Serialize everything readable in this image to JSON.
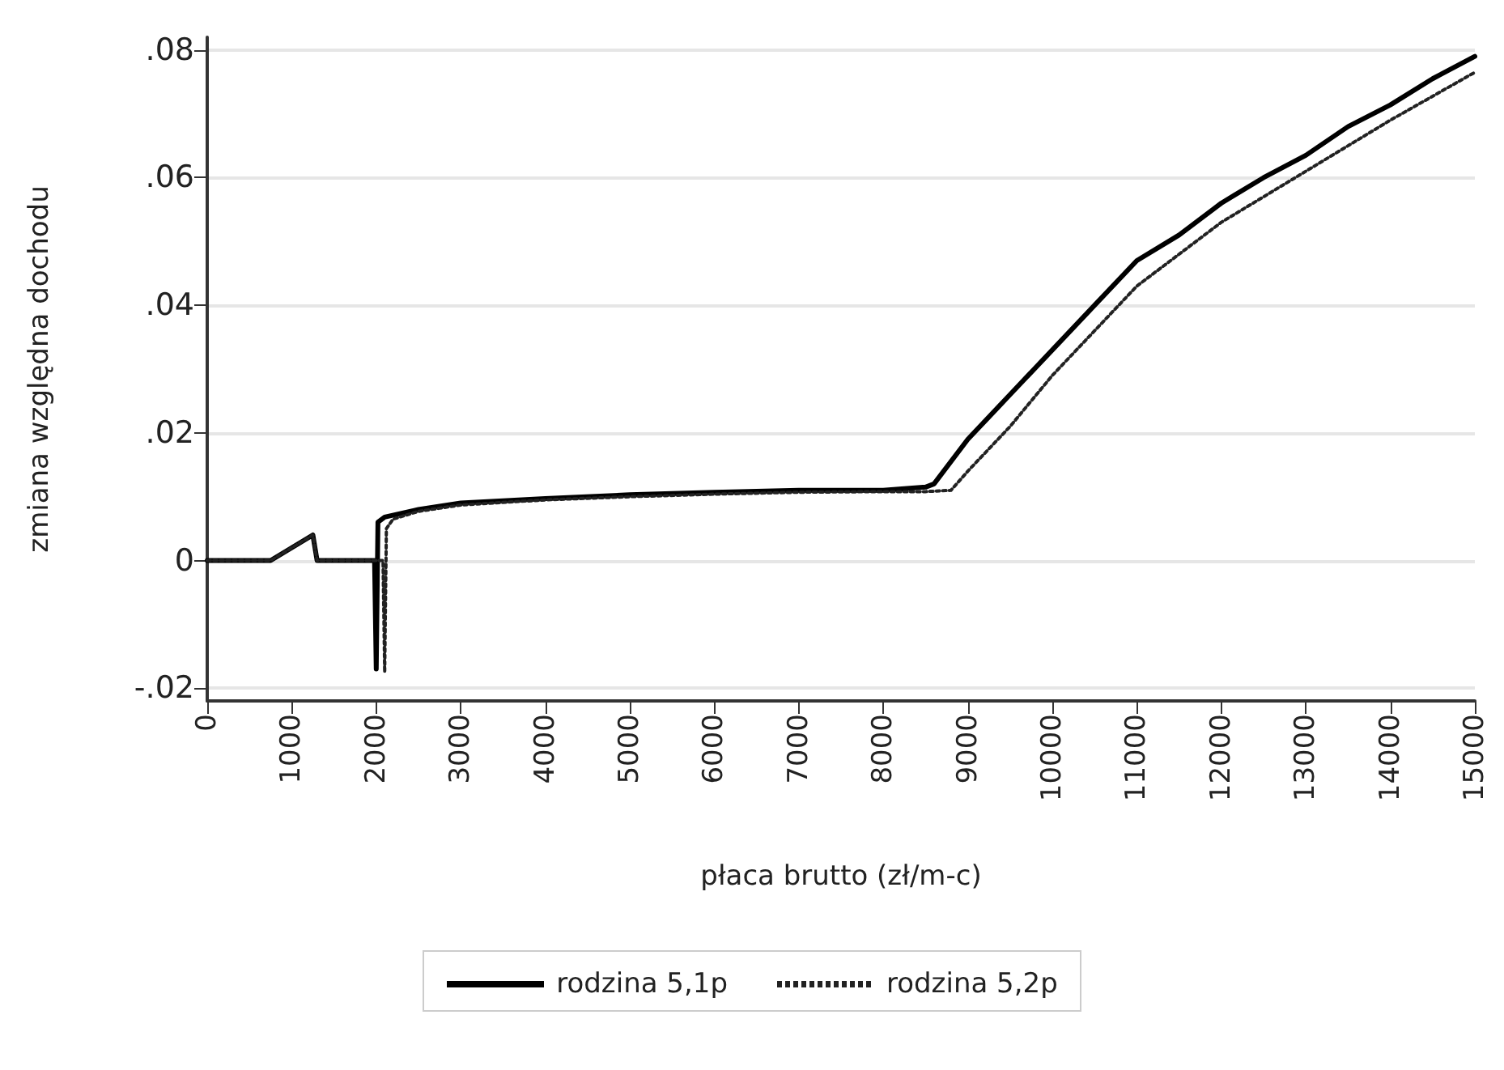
{
  "chart_data": {
    "type": "line",
    "xlabel": "płaca brutto (zł/m-c)",
    "ylabel": "zmiana względna dochodu",
    "xlim": [
      0,
      15000
    ],
    "xticks": [
      0,
      1000,
      2000,
      3000,
      4000,
      5000,
      6000,
      7000,
      8000,
      9000,
      10000,
      11000,
      12000,
      13000,
      14000,
      15000
    ],
    "ylim": [
      -0.022,
      0.082
    ],
    "yticks": [
      {
        "value": -0.02,
        "label": "-.02"
      },
      0,
      {
        "value": 0.02,
        "label": ".02"
      },
      {
        "value": 0.04,
        "label": ".04"
      },
      {
        "value": 0.06,
        "label": ".06"
      },
      {
        "value": 0.08,
        "label": ".08"
      }
    ],
    "grid": "y",
    "legend": "bottom",
    "series": [
      {
        "name": "rodzina 5,1p",
        "color": "#000000",
        "line_style": "solid",
        "x": [
          0,
          750,
          1000,
          1250,
          1300,
          1980,
          2000,
          2020,
          2100,
          2500,
          3000,
          4000,
          5000,
          6000,
          7000,
          8000,
          8500,
          8600,
          9000,
          9500,
          10000,
          10500,
          11000,
          11500,
          12000,
          12500,
          13000,
          13500,
          14000,
          14500,
          15000
        ],
        "values": [
          0,
          0,
          0.002,
          0.004,
          0,
          0,
          -0.017,
          0.006,
          0.0068,
          0.008,
          0.009,
          0.0097,
          0.0103,
          0.0107,
          0.011,
          0.011,
          0.0115,
          0.012,
          0.019,
          0.026,
          0.033,
          0.04,
          0.047,
          0.051,
          0.056,
          0.06,
          0.0635,
          0.068,
          0.0714,
          0.0755,
          0.079
        ]
      },
      {
        "name": "rodzina 5,2p",
        "color": "#222222",
        "line_style": "dotted",
        "x": [
          0,
          750,
          1000,
          1250,
          1300,
          2080,
          2100,
          2120,
          2200,
          2500,
          3000,
          4000,
          5000,
          6000,
          7000,
          8000,
          8500,
          8800,
          9000,
          9500,
          10000,
          11000,
          12000,
          13000,
          14000,
          15000
        ],
        "values": [
          0,
          0,
          0.002,
          0.004,
          0,
          0,
          -0.0175,
          0.005,
          0.0065,
          0.0077,
          0.0087,
          0.0095,
          0.01,
          0.0104,
          0.0107,
          0.0108,
          0.0108,
          0.011,
          0.014,
          0.021,
          0.029,
          0.043,
          0.053,
          0.061,
          0.069,
          0.0765
        ]
      }
    ]
  }
}
